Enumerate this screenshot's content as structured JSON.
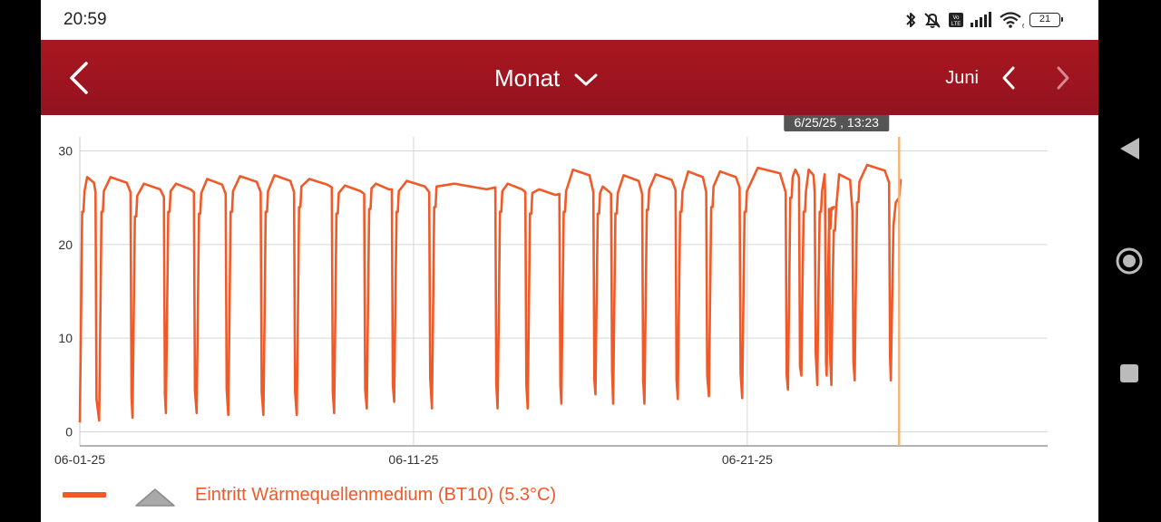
{
  "status_bar": {
    "time": "20:59",
    "battery": "21",
    "icons": [
      "bluetooth-icon",
      "mute-icon",
      "volte-icon",
      "signal-icon",
      "wifi-icon",
      "battery-icon"
    ]
  },
  "app_bar": {
    "back_icon": "chevron-left-icon",
    "period_label": "Monat",
    "period_dropdown_icon": "chevron-down-icon",
    "month_label": "Juni",
    "prev_icon": "chevron-left-icon",
    "next_icon": "chevron-right-icon"
  },
  "colors": {
    "app_bar": "#9e1420",
    "series": "#f05a28",
    "cursor": "#f4b37a",
    "tooltip_bg": "#555555"
  },
  "chart_data": {
    "type": "line",
    "title": "",
    "xlabel": "",
    "ylabel": "",
    "x_ticks": [
      "06-01-25",
      "06-11-25",
      "06-21-25"
    ],
    "x_tick_days": [
      1,
      11,
      21
    ],
    "xlim_days": [
      1,
      30
    ],
    "ylim": [
      -1.5,
      31.5
    ],
    "y_ticks": [
      0,
      10,
      20,
      30
    ],
    "grid": true,
    "legend_position": "bottom-left",
    "cursor": {
      "day": 25.55,
      "label": "6/25/25 , 13:23"
    },
    "series": [
      {
        "name": "Eintritt Wärmequellenmedium (BT10) (5.3°C)",
        "legend_label": "Eintritt Wärmequellenmedium (BT10) (5.3°C)",
        "cycles": [
          {
            "start": 1.0,
            "low": 1.0,
            "top": 26.0,
            "peak": 27.2,
            "end": 1.5
          },
          {
            "start": 1.58,
            "low": 1.2,
            "top": 26.0,
            "peak": 27.2,
            "end": 2.55
          },
          {
            "start": 2.58,
            "low": 1.5,
            "top": 25.5,
            "peak": 26.5,
            "end": 3.55
          },
          {
            "start": 3.58,
            "low": 2.0,
            "top": 26.0,
            "peak": 26.5,
            "end": 4.45
          },
          {
            "start": 4.5,
            "low": 2.0,
            "top": 25.8,
            "peak": 27.0,
            "end": 5.4
          },
          {
            "start": 5.45,
            "low": 1.8,
            "top": 26.0,
            "peak": 27.3,
            "end": 6.45
          },
          {
            "start": 6.5,
            "low": 1.8,
            "top": 26.0,
            "peak": 27.4,
            "end": 7.45
          },
          {
            "start": 7.5,
            "low": 1.8,
            "top": 26.5,
            "peak": 27.0,
            "end": 8.58
          },
          {
            "start": 8.62,
            "low": 2.0,
            "top": 25.8,
            "peak": 26.3,
            "end": 9.55
          },
          {
            "start": 9.6,
            "low": 2.5,
            "top": 26.3,
            "peak": 26.5,
            "end": 10.38
          },
          {
            "start": 10.42,
            "low": 3.2,
            "top": 26.0,
            "peak": 26.8,
            "end": 11.5
          },
          {
            "start": 11.55,
            "low": 2.5,
            "top": 26.5,
            "peak": 26.5,
            "end": 13.48
          },
          {
            "start": 13.52,
            "low": 2.5,
            "top": 26.0,
            "peak": 26.5,
            "end": 14.38
          },
          {
            "start": 14.42,
            "low": 2.5,
            "top": 25.8,
            "peak": 25.9,
            "end": 15.4
          },
          {
            "start": 15.43,
            "low": 3.0,
            "top": 26.0,
            "peak": 28.0,
            "end": 16.42
          },
          {
            "start": 16.45,
            "low": 4.0,
            "top": 25.8,
            "peak": 26.2,
            "end": 16.95
          },
          {
            "start": 16.98,
            "low": 3.0,
            "top": 25.8,
            "peak": 27.4,
            "end": 17.88
          },
          {
            "start": 17.92,
            "low": 3.0,
            "top": 26.2,
            "peak": 27.5,
            "end": 18.88
          },
          {
            "start": 18.92,
            "low": 3.5,
            "top": 26.0,
            "peak": 27.8,
            "end": 19.8
          },
          {
            "start": 19.85,
            "low": 3.8,
            "top": 26.5,
            "peak": 27.8,
            "end": 20.8
          },
          {
            "start": 20.85,
            "low": 3.6,
            "top": 26.0,
            "peak": 28.2,
            "end": 22.18
          },
          {
            "start": 22.22,
            "low": 4.5,
            "top": 27.5,
            "peak": 28.0,
            "end": 22.58
          },
          {
            "start": 22.62,
            "low": 6.0,
            "top": 26.0,
            "peak": 28.0,
            "end": 23.05
          },
          {
            "start": 23.1,
            "low": 5.0,
            "top": 26.0,
            "peak": 27.5,
            "end": 23.36
          },
          {
            "start": 23.38,
            "low": 6.0,
            "top": 24.2,
            "peak": 24.0,
            "end": 23.48
          },
          {
            "start": 23.52,
            "low": 5.0,
            "top": 24.0,
            "peak": 27.5,
            "end": 24.18
          },
          {
            "start": 24.22,
            "low": 5.5,
            "top": 27.0,
            "peak": 28.5,
            "end": 25.28
          }
        ],
        "tail": [
          [
            25.3,
            5.5
          ],
          [
            25.38,
            22.0
          ],
          [
            25.45,
            24.5
          ],
          [
            25.55,
            25.0
          ],
          [
            25.6,
            27.0
          ]
        ]
      }
    ]
  },
  "nav_bar": {
    "back_icon": "triangle-back-icon",
    "home_icon": "circle-home-icon",
    "recents_icon": "square-recents-icon"
  }
}
